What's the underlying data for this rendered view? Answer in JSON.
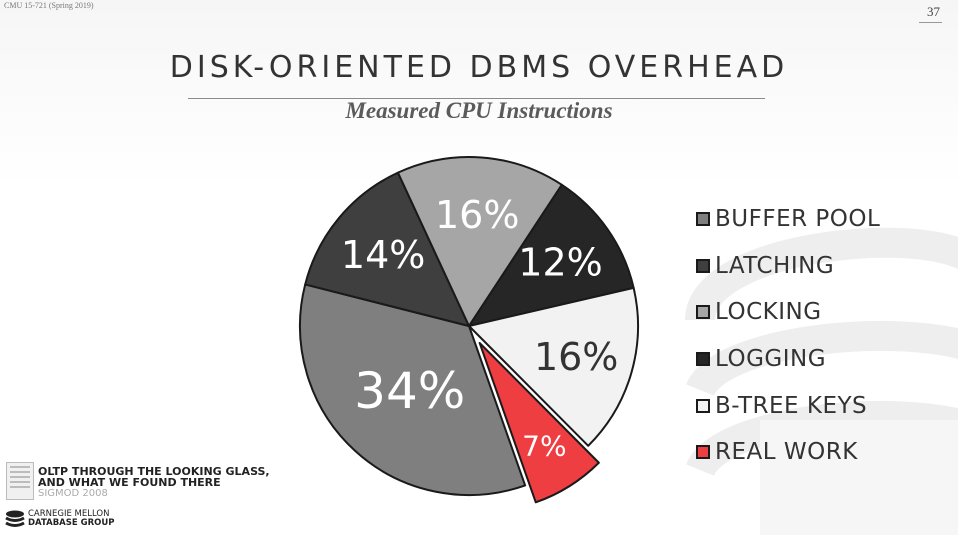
{
  "slide": {
    "course": "CMU 15-721 (Spring 2019)",
    "page_number": "37",
    "title": "DISK-ORIENTED DBMS OVERHEAD",
    "subtitle": "Measured CPU Instructions"
  },
  "chart_data": {
    "type": "pie",
    "title": "Measured CPU Instructions",
    "slices": [
      {
        "label": "BUFFER POOL",
        "value": 34,
        "display": "34%",
        "color": "#7f7f7f",
        "text_color": "#ffffff",
        "exploded": false
      },
      {
        "label": "LATCHING",
        "value": 14,
        "display": "14%",
        "color": "#3f3f3f",
        "text_color": "#ffffff",
        "exploded": false
      },
      {
        "label": "LOCKING",
        "value": 16,
        "display": "16%",
        "color": "#a6a6a6",
        "text_color": "#ffffff",
        "exploded": false
      },
      {
        "label": "LOGGING",
        "value": 12,
        "display": "12%",
        "color": "#262626",
        "text_color": "#ffffff",
        "exploded": false
      },
      {
        "label": "B-TREE KEYS",
        "value": 16,
        "display": "16%",
        "color": "#f2f2f2",
        "text_color": "#333333",
        "exploded": false
      },
      {
        "label": "REAL WORK",
        "value": 7,
        "display": "7%",
        "color": "#ef3e42",
        "text_color": "#ffffff",
        "exploded": true
      }
    ],
    "legend_position": "right",
    "slice_border_color": "#1a1a1a"
  },
  "reference": {
    "title": "OLTP THROUGH THE LOOKING GLASS,\nAND WHAT WE FOUND THERE",
    "venue": "SIGMOD 2008"
  },
  "logo": {
    "line1": "CARNEGIE MELLON",
    "line2": "DATABASE GROUP"
  }
}
